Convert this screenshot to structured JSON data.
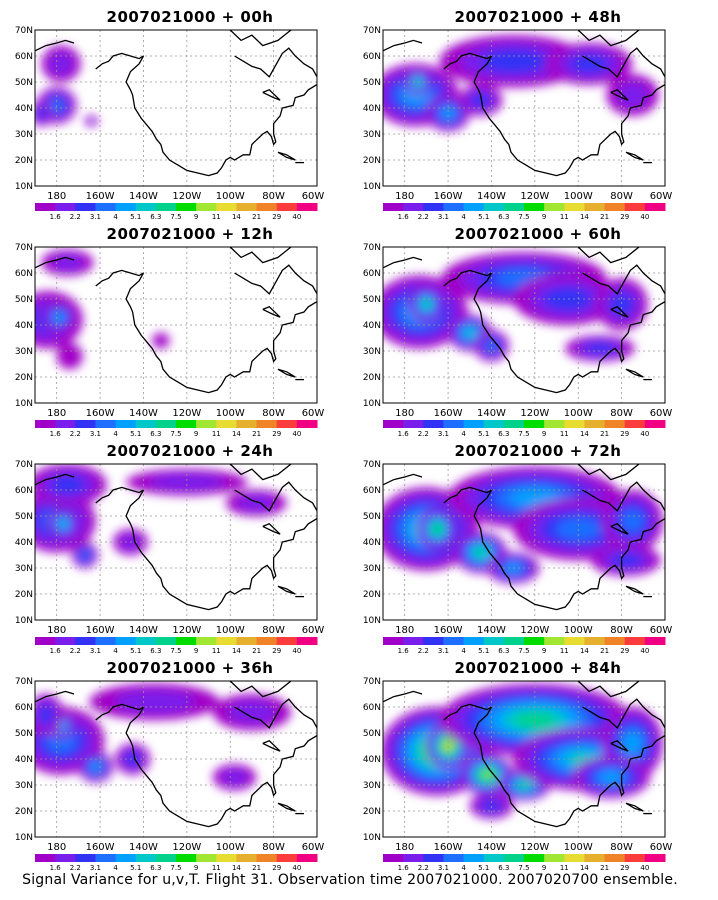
{
  "caption": "Signal Variance for u,v,T. Flight 31. Observation time 2007021000. 2007020700 ensemble.",
  "lat_labels": [
    "70N",
    "60N",
    "50N",
    "40N",
    "30N",
    "20N",
    "10N"
  ],
  "lon_labels": [
    "180",
    "160W",
    "140W",
    "120W",
    "100W",
    "80W",
    "60W"
  ],
  "colorbar": {
    "levels": [
      "1.6",
      "2.2",
      "3.1",
      "4",
      "5.1",
      "6.3",
      "7.5",
      "9",
      "11",
      "14",
      "21",
      "29",
      "40"
    ],
    "colors": [
      "#ffffff",
      "#a000c8",
      "#7a1eeb",
      "#3232f5",
      "#1e6eff",
      "#00a0ff",
      "#00c8c8",
      "#00d28c",
      "#00dc00",
      "#a0e632",
      "#e6dc32",
      "#e6af2d",
      "#f08228",
      "#fa3c3c",
      "#f00082"
    ]
  },
  "chart_data": {
    "type": "heatmap",
    "field": "signal variance",
    "xlim": [
      170,
      300
    ],
    "ylim": [
      10,
      70
    ],
    "panels": [
      {
        "title": "2007021000 + 00h",
        "blobs": [
          [
            182,
            57,
            9,
            7,
            2
          ],
          [
            180,
            41,
            9,
            7,
            4
          ],
          [
            173,
            38,
            5,
            5,
            3
          ],
          [
            196,
            35,
            3,
            2,
            2
          ]
        ]
      },
      {
        "title": "2007021000 + 12h",
        "blobs": [
          [
            176,
            42,
            16,
            11,
            3
          ],
          [
            181,
            43,
            8,
            6,
            5
          ],
          [
            185,
            64,
            12,
            5,
            2
          ],
          [
            228,
            34,
            4,
            3,
            1
          ],
          [
            186,
            28,
            6,
            5,
            1
          ]
        ]
      },
      {
        "title": "2007021000 + 24h",
        "blobs": [
          [
            180,
            48,
            18,
            12,
            4
          ],
          [
            183,
            47,
            7,
            6,
            6
          ],
          [
            193,
            35,
            6,
            5,
            4
          ],
          [
            214,
            40,
            8,
            5,
            2
          ],
          [
            240,
            63,
            28,
            5,
            2
          ],
          [
            272,
            55,
            14,
            5,
            2
          ],
          [
            185,
            62,
            18,
            8,
            3
          ]
        ]
      },
      {
        "title": "2007021000 + 36h",
        "blobs": [
          [
            182,
            47,
            20,
            13,
            4
          ],
          [
            182,
            53,
            7,
            5,
            6
          ],
          [
            198,
            37,
            8,
            6,
            5
          ],
          [
            215,
            40,
            8,
            6,
            3
          ],
          [
            225,
            62,
            30,
            7,
            2
          ],
          [
            270,
            58,
            18,
            7,
            2
          ],
          [
            262,
            33,
            10,
            5,
            2
          ],
          [
            175,
            57,
            8,
            8,
            3
          ]
        ]
      },
      {
        "title": "2007021000 + 48h",
        "blobs": [
          [
            185,
            45,
            20,
            12,
            5
          ],
          [
            186,
            50,
            6,
            5,
            7
          ],
          [
            200,
            38,
            10,
            7,
            5
          ],
          [
            215,
            43,
            10,
            6,
            3
          ],
          [
            230,
            58,
            34,
            10,
            3
          ],
          [
            265,
            57,
            20,
            8,
            3
          ],
          [
            285,
            45,
            12,
            8,
            2
          ]
        ]
      },
      {
        "title": "2007021000 + 60h",
        "blobs": [
          [
            187,
            45,
            22,
            14,
            5
          ],
          [
            190,
            48,
            8,
            7,
            7
          ],
          [
            210,
            37,
            10,
            7,
            6
          ],
          [
            220,
            32,
            8,
            6,
            4
          ],
          [
            235,
            58,
            38,
            10,
            4
          ],
          [
            255,
            50,
            25,
            10,
            3
          ],
          [
            280,
            48,
            12,
            10,
            3
          ],
          [
            270,
            31,
            16,
            5,
            3
          ]
        ]
      },
      {
        "title": "2007021000 + 72h",
        "blobs": [
          [
            190,
            45,
            24,
            16,
            6
          ],
          [
            195,
            45,
            9,
            8,
            8
          ],
          [
            215,
            36,
            12,
            8,
            7
          ],
          [
            230,
            30,
            12,
            6,
            5
          ],
          [
            240,
            57,
            40,
            12,
            5
          ],
          [
            260,
            45,
            30,
            12,
            4
          ],
          [
            285,
            48,
            14,
            12,
            4
          ],
          [
            282,
            33,
            16,
            6,
            3
          ]
        ]
      },
      {
        "title": "2007021000 + 84h",
        "blobs": [
          [
            195,
            43,
            26,
            17,
            8
          ],
          [
            200,
            45,
            10,
            9,
            10
          ],
          [
            218,
            34,
            12,
            8,
            9
          ],
          [
            235,
            30,
            12,
            6,
            7
          ],
          [
            240,
            55,
            44,
            14,
            7
          ],
          [
            262,
            40,
            32,
            12,
            6
          ],
          [
            285,
            46,
            14,
            14,
            5
          ],
          [
            275,
            33,
            18,
            8,
            5
          ],
          [
            220,
            22,
            10,
            5,
            3
          ]
        ]
      }
    ]
  }
}
